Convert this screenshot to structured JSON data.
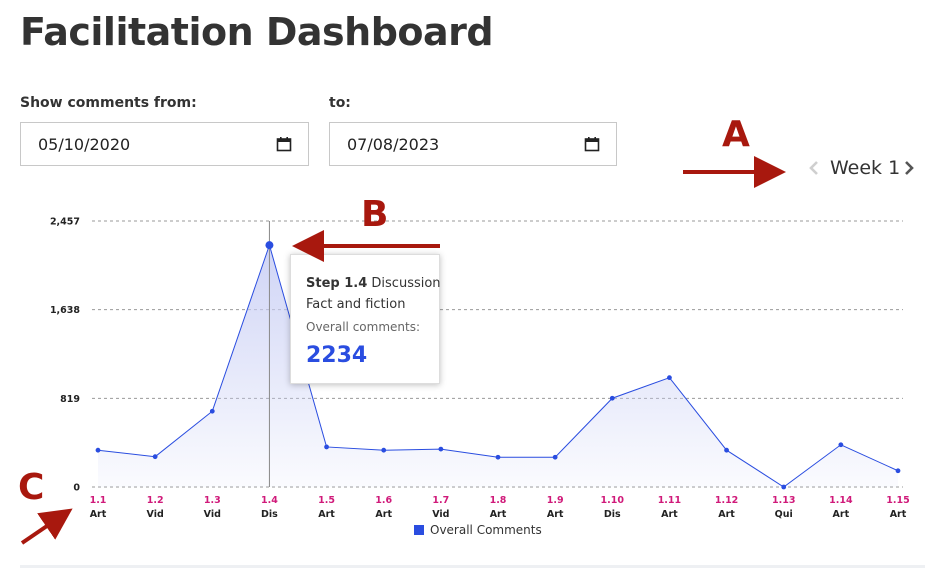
{
  "page": {
    "title": "Facilitation Dashboard"
  },
  "filters": {
    "from_label": "Show comments from:",
    "from_value": "05/10/2020",
    "to_label": "to:",
    "to_value": "07/08/2023"
  },
  "week_nav": {
    "label": "Week 1"
  },
  "annotations": {
    "a": "A",
    "b": "B",
    "c": "C"
  },
  "tooltip": {
    "step": "Step 1.4",
    "type": "Discussion",
    "title": "Fact and fiction",
    "metric_label": "Overall comments:",
    "metric_value": "2234"
  },
  "chart_data": {
    "type": "area",
    "title": "",
    "xlabel": "",
    "ylabel": "",
    "categories": [
      "1.1",
      "1.2",
      "1.3",
      "1.4",
      "1.5",
      "1.6",
      "1.7",
      "1.8",
      "1.9",
      "1.10",
      "1.11",
      "1.12",
      "1.13",
      "1.14",
      "1.15"
    ],
    "category_types": [
      "Art",
      "Vid",
      "Vid",
      "Dis",
      "Art",
      "Art",
      "Vid",
      "Art",
      "Art",
      "Dis",
      "Art",
      "Art",
      "Qui",
      "Art",
      "Art"
    ],
    "series": [
      {
        "name": "Overall Comments",
        "values": [
          340,
          280,
          700,
          2234,
          370,
          340,
          350,
          275,
          275,
          820,
          1010,
          340,
          0,
          390,
          150
        ]
      }
    ],
    "yticks": [
      0,
      819,
      1638,
      2457
    ],
    "ytick_labels": [
      "0",
      "819",
      "1,638",
      "2,457"
    ],
    "ylim": [
      0,
      2457
    ],
    "grid": true,
    "highlight_index": 3,
    "legend": "bottom-center",
    "colors": {
      "line": "#2a4de0",
      "fill": "#c7cdf4",
      "category": "#d01a7a"
    }
  }
}
